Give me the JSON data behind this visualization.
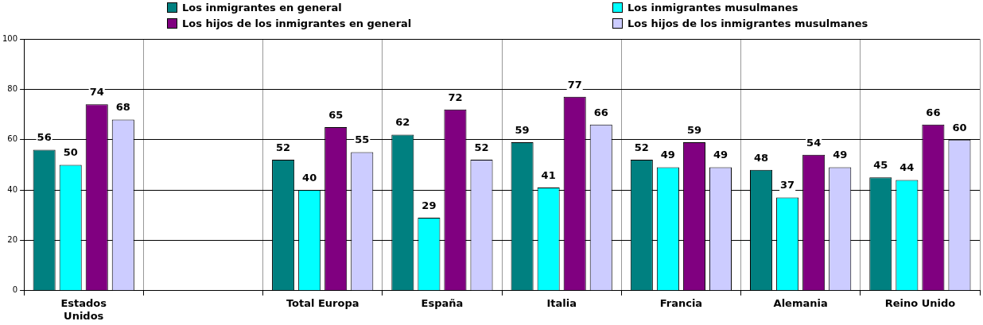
{
  "chart_data": {
    "type": "bar",
    "categories": [
      "Estados Unidos",
      null,
      "Total Europa",
      "España",
      "Italia",
      "Francia",
      "Alemania",
      "Reino Unido"
    ],
    "series": [
      {
        "name": "Los inmigrantes en general",
        "color": "#008080",
        "values": [
          56,
          null,
          52,
          62,
          59,
          52,
          48,
          45
        ]
      },
      {
        "name": "Los inmigrantes musulmanes",
        "color": "#00ffff",
        "values": [
          50,
          null,
          40,
          29,
          41,
          49,
          37,
          44
        ]
      },
      {
        "name": "Los hijos de los inmigrantes en general",
        "color": "#800080",
        "values": [
          74,
          null,
          65,
          72,
          77,
          59,
          54,
          66
        ]
      },
      {
        "name": "Los hijos de los inmigrantes musulmanes",
        "color": "#ccccff",
        "values": [
          68,
          null,
          55,
          52,
          66,
          49,
          49,
          60
        ]
      }
    ],
    "ylim": [
      0,
      100
    ],
    "yticks": [
      0,
      20,
      40,
      60,
      80,
      100
    ],
    "grid": true,
    "legend": "top",
    "data_labels": true
  }
}
